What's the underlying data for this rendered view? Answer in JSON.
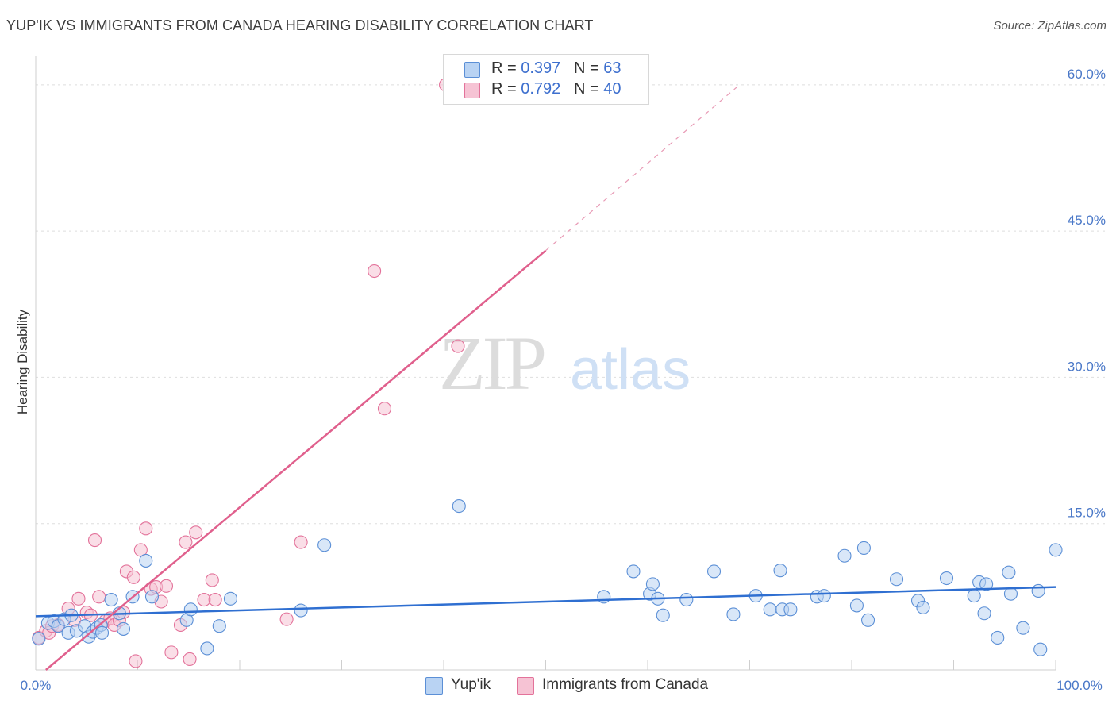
{
  "title": "YUP'IK VS IMMIGRANTS FROM CANADA HEARING DISABILITY CORRELATION CHART",
  "source": "Source: ZipAtlas.com",
  "watermark": {
    "zip": "ZIP",
    "atlas": "atlas"
  },
  "legend": {
    "rows": [
      {
        "r_label": "R = ",
        "r_value": "0.397",
        "n_label": "N = ",
        "n_value": "63",
        "color": "#a8c8f0"
      },
      {
        "r_label": "R = ",
        "r_value": "0.792",
        "n_label": "N = ",
        "n_value": "40",
        "color": "#f4b8cc"
      }
    ]
  },
  "bottom_legend": {
    "yupik": "Yup'ik",
    "canada": "Immigrants from Canada"
  },
  "chart_data": {
    "type": "scatter",
    "title": "YUP'IK VS IMMIGRANTS FROM CANADA HEARING DISABILITY CORRELATION CHART",
    "xlabel": "",
    "ylabel": "Hearing Disability",
    "xlim": [
      0,
      100
    ],
    "ylim": [
      0,
      63
    ],
    "x_tick_labels": [
      "0.0%",
      "100.0%"
    ],
    "y_ticks": [
      15,
      30,
      45,
      60
    ],
    "y_tick_labels": [
      "15.0%",
      "30.0%",
      "45.0%",
      "60.0%"
    ],
    "series": [
      {
        "name": "Yup'ik",
        "color": "#5b8fd6",
        "fill": "#b9d3f3",
        "trend": {
          "x0": 0,
          "y0": 5.5,
          "x1": 100,
          "y1": 8.5,
          "dashed_extension": false
        },
        "points": [
          [
            0.3,
            3.2
          ],
          [
            1.2,
            4.8
          ],
          [
            1.8,
            5.0
          ],
          [
            2.2,
            4.5
          ],
          [
            2.8,
            5.2
          ],
          [
            3.5,
            5.6
          ],
          [
            3.2,
            3.8
          ],
          [
            4.0,
            4.0
          ],
          [
            4.8,
            4.5
          ],
          [
            5.2,
            3.4
          ],
          [
            5.6,
            3.9
          ],
          [
            6.0,
            4.3
          ],
          [
            6.4,
            4.6
          ],
          [
            6.5,
            3.8
          ],
          [
            7.4,
            7.2
          ],
          [
            8.2,
            5.8
          ],
          [
            8.6,
            4.2
          ],
          [
            9.5,
            7.5
          ],
          [
            10.8,
            11.2
          ],
          [
            11.4,
            7.5
          ],
          [
            14.8,
            5.1
          ],
          [
            15.2,
            6.2
          ],
          [
            16.8,
            2.2
          ],
          [
            18.0,
            4.5
          ],
          [
            19.1,
            7.3
          ],
          [
            26.0,
            6.1
          ],
          [
            28.3,
            12.8
          ],
          [
            41.5,
            16.8
          ],
          [
            55.7,
            7.5
          ],
          [
            58.6,
            10.1
          ],
          [
            60.2,
            7.8
          ],
          [
            60.5,
            8.8
          ],
          [
            61.0,
            7.3
          ],
          [
            61.5,
            5.6
          ],
          [
            63.8,
            7.2
          ],
          [
            66.5,
            10.1
          ],
          [
            68.4,
            5.7
          ],
          [
            70.6,
            7.6
          ],
          [
            72.0,
            6.2
          ],
          [
            73.0,
            10.2
          ],
          [
            73.2,
            6.2
          ],
          [
            74.0,
            6.2
          ],
          [
            76.6,
            7.5
          ],
          [
            77.3,
            7.6
          ],
          [
            79.3,
            11.7
          ],
          [
            80.5,
            6.6
          ],
          [
            81.2,
            12.5
          ],
          [
            81.6,
            5.1
          ],
          [
            84.4,
            9.3
          ],
          [
            86.5,
            7.1
          ],
          [
            87.0,
            6.4
          ],
          [
            89.3,
            9.4
          ],
          [
            92.0,
            7.6
          ],
          [
            92.5,
            9.0
          ],
          [
            93.0,
            5.8
          ],
          [
            93.2,
            8.8
          ],
          [
            94.3,
            3.3
          ],
          [
            95.4,
            10.0
          ],
          [
            95.6,
            7.8
          ],
          [
            96.8,
            4.3
          ],
          [
            98.3,
            8.1
          ],
          [
            98.5,
            2.1
          ],
          [
            100.0,
            12.3
          ]
        ]
      },
      {
        "name": "Immigrants from Canada",
        "color": "#e3729a",
        "fill": "#f6c3d4",
        "trend": {
          "x0": 1,
          "y0": 0,
          "x1": 50,
          "y1": 43,
          "dashed_to_x": 69,
          "dashed_to_y": 60
        },
        "points": [
          [
            0.3,
            3.3
          ],
          [
            1.0,
            4.0
          ],
          [
            1.3,
            3.8
          ],
          [
            1.6,
            4.5
          ],
          [
            2.2,
            4.6
          ],
          [
            3.2,
            6.3
          ],
          [
            3.8,
            5.1
          ],
          [
            4.2,
            7.3
          ],
          [
            5.0,
            5.9
          ],
          [
            5.4,
            5.6
          ],
          [
            5.8,
            13.3
          ],
          [
            6.2,
            7.5
          ],
          [
            6.8,
            5.0
          ],
          [
            7.3,
            5.3
          ],
          [
            7.7,
            4.6
          ],
          [
            8.2,
            5.1
          ],
          [
            8.6,
            5.9
          ],
          [
            8.9,
            10.1
          ],
          [
            9.6,
            9.5
          ],
          [
            9.8,
            0.9
          ],
          [
            10.3,
            12.3
          ],
          [
            10.8,
            14.5
          ],
          [
            11.3,
            8.3
          ],
          [
            11.8,
            8.5
          ],
          [
            12.3,
            7.0
          ],
          [
            12.8,
            8.6
          ],
          [
            13.3,
            1.8
          ],
          [
            14.2,
            4.6
          ],
          [
            14.7,
            13.1
          ],
          [
            15.1,
            1.1
          ],
          [
            15.7,
            14.1
          ],
          [
            16.5,
            7.2
          ],
          [
            17.3,
            9.2
          ],
          [
            17.6,
            7.2
          ],
          [
            24.6,
            5.2
          ],
          [
            26.0,
            13.1
          ],
          [
            33.2,
            40.9
          ],
          [
            34.2,
            26.8
          ],
          [
            41.4,
            33.2
          ],
          [
            40.2,
            60.0
          ]
        ]
      }
    ]
  }
}
